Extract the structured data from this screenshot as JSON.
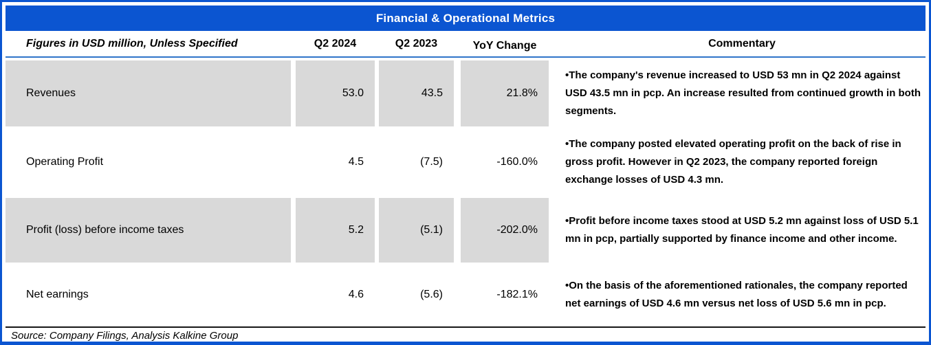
{
  "title": "Financial & Operational Metrics",
  "columns": {
    "label": "Figures in USD million, Unless Specified",
    "q2_2024": "Q2 2024",
    "q2_2023": "Q2 2023",
    "yoy_change": "YoY Change",
    "commentary": "Commentary"
  },
  "rows": [
    {
      "label": "Revenues",
      "q2_2024": "53.0",
      "q2_2023": "43.5",
      "yoy_change": "21.8%",
      "commentary": "•The company's revenue increased to USD 53 mn in Q2 2024 against USD 43.5 mn in pcp. An increase resulted from continued growth in both segments."
    },
    {
      "label": "Operating Profit",
      "q2_2024": "4.5",
      "q2_2023": "(7.5)",
      "yoy_change": "-160.0%",
      "commentary": "•The company posted elevated operating profit on the back of rise in gross profit. However in Q2 2023, the company reported foreign exchange losses of USD 4.3 mn."
    },
    {
      "label": "Profit (loss) before income taxes",
      "q2_2024": "5.2",
      "q2_2023": "(5.1)",
      "yoy_change": "-202.0%",
      "commentary": "•Profit before income taxes stood at USD 5.2 mn against loss of USD 5.1 mn in pcp, partially supported by finance income and other income."
    },
    {
      "label": "Net earnings",
      "q2_2024": "4.6",
      "q2_2023": "(5.6)",
      "yoy_change": "-182.1%",
      "commentary": "•On the basis of the aforementioned rationales, the company reported net earnings of USD 4.6 mn versus net loss of USD 5.6 mn in pcp."
    }
  ],
  "source": "Source: Company Filings, Analysis Kalkine Group",
  "colors": {
    "header_blue": "#0b55d1",
    "row_grey": "#d9d9d9",
    "rule_blue": "#2e74c9",
    "text": "#000000"
  }
}
